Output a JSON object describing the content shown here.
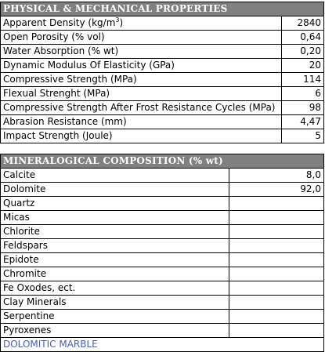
{
  "physical": {
    "header": "PHYSICAL & MECHANICAL PROPERTIES",
    "rows": [
      {
        "label_pre": "Apparent Density (kg/m",
        "label_sup": "3",
        "label_post": ")",
        "value": "2840"
      },
      {
        "label": "Open Porosity (% vol)",
        "value": "0,64"
      },
      {
        "label": "Water Absorption (% wt)",
        "value": "0,20"
      },
      {
        "label": "Dynamic Modulus Of Elasticity (GPa)",
        "value": "20"
      },
      {
        "label": "Compressive Strength (MPa)",
        "value": "114"
      },
      {
        "label": "Flexual Strenght (MPa)",
        "value": "6"
      },
      {
        "label": "Compressive Strength After Frost Resistance Cycles (MPa)",
        "value": "98"
      },
      {
        "label": "Abrasion Resistance (mm)",
        "value": "4,47"
      },
      {
        "label": "Impact Strength (Joule)",
        "value": "5"
      }
    ]
  },
  "mineral": {
    "header": "MINERALOGICAL COMPOSITION (% wt)",
    "rows": [
      {
        "label": "Calcite",
        "value": "8,0"
      },
      {
        "label": "Dolomite",
        "value": "92,0"
      },
      {
        "label": "Quartz",
        "value": ""
      },
      {
        "label": "Micas",
        "value": ""
      },
      {
        "label": "Chlorite",
        "value": ""
      },
      {
        "label": "Feldspars",
        "value": ""
      },
      {
        "label": "Epidote",
        "value": ""
      },
      {
        "label": "Chromite",
        "value": ""
      },
      {
        "label": "Fe Oxodes, ect.",
        "value": ""
      },
      {
        "label": "Clay Minerals",
        "value": ""
      },
      {
        "label": "Serpentine",
        "value": ""
      },
      {
        "label": "Pyroxenes",
        "value": ""
      }
    ],
    "footer": "DOLOMITIC MARBLE"
  }
}
